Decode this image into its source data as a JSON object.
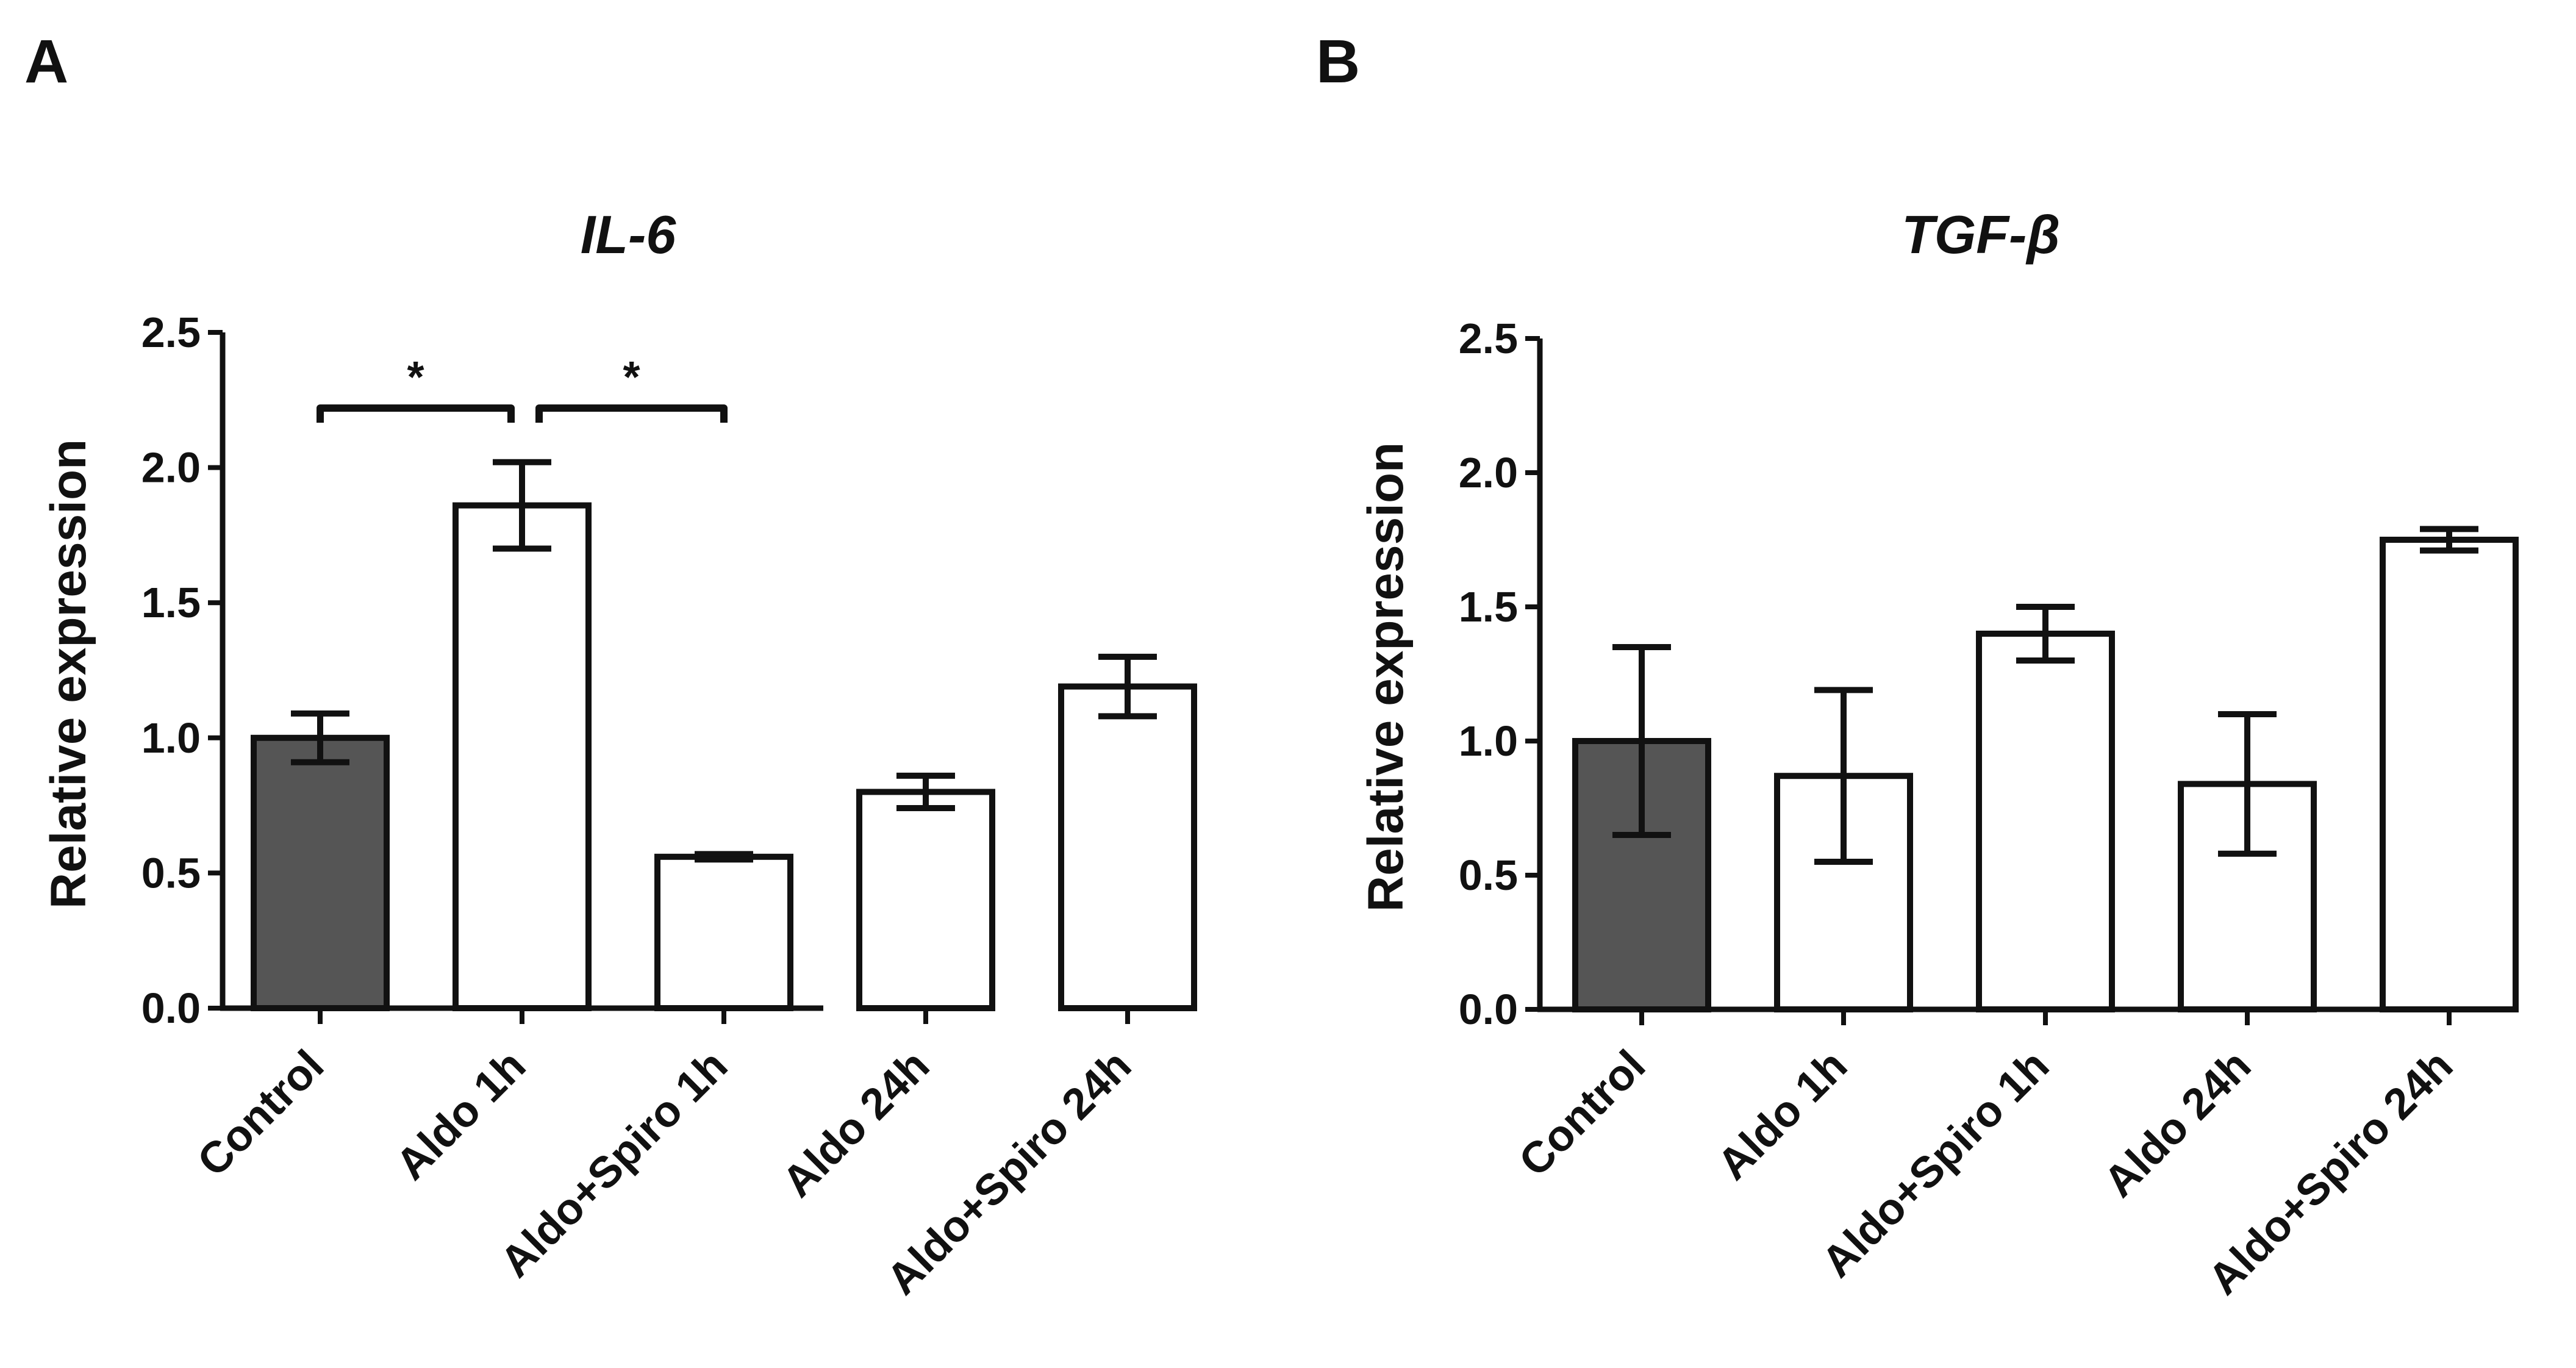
{
  "chart_data": [
    {
      "panel": "A",
      "type": "bar",
      "title": "IL-6",
      "xlabel": "",
      "ylabel": "Relative expression",
      "ylim": [
        0,
        2.5
      ],
      "yticks": [
        "0.0",
        "0.5",
        "1.0",
        "1.5",
        "2.0",
        "2.5"
      ],
      "grid": false,
      "legend": "none",
      "categories": [
        "Control",
        "Aldo 1h",
        "Aldo+Spiro 1h",
        "Aldo 24h",
        "Aldo+Spiro 24h"
      ],
      "values": [
        1.0,
        1.86,
        0.56,
        0.8,
        1.19
      ],
      "errors": [
        0.09,
        0.16,
        0.01,
        0.06,
        0.11
      ],
      "bar_fills": [
        "#555555",
        "#ffffff",
        "#ffffff",
        "#ffffff",
        "#ffffff"
      ],
      "significance": [
        {
          "from": 0,
          "to": 1,
          "label": "*",
          "y": 2.22
        },
        {
          "from": 1,
          "to": 2,
          "label": "*",
          "y": 2.22
        }
      ]
    },
    {
      "panel": "B",
      "type": "bar",
      "title": "TGF-β",
      "xlabel": "",
      "ylabel": "Relative expression",
      "ylim": [
        0,
        2.5
      ],
      "yticks": [
        "0.0",
        "0.5",
        "1.0",
        "1.5",
        "2.0",
        "2.5"
      ],
      "grid": false,
      "legend": "none",
      "categories": [
        "Control",
        "Aldo 1h",
        "Aldo+Spiro 1h",
        "Aldo 24h",
        "Aldo+Spiro 24h"
      ],
      "values": [
        1.0,
        0.87,
        1.4,
        0.84,
        1.75
      ],
      "errors": [
        0.35,
        0.32,
        0.1,
        0.26,
        0.04
      ],
      "bar_fills": [
        "#555555",
        "#ffffff",
        "#ffffff",
        "#ffffff",
        "#ffffff"
      ],
      "significance": []
    }
  ]
}
